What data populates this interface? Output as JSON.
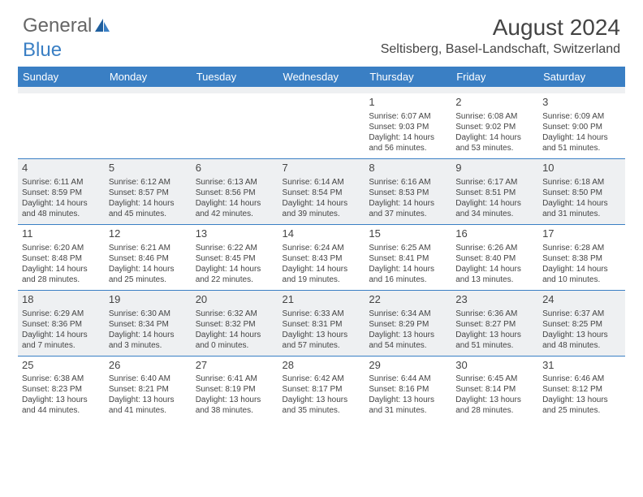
{
  "logo": {
    "text1": "General",
    "text2": "Blue"
  },
  "title": "August 2024",
  "location": "Seltisberg, Basel-Landschaft, Switzerland",
  "colors": {
    "header_bg": "#3a7fc4",
    "header_text": "#ffffff",
    "shaded_row": "#eef0f2",
    "divider": "#3a7fc4",
    "text": "#444444",
    "background": "#ffffff"
  },
  "day_headers": [
    "Sunday",
    "Monday",
    "Tuesday",
    "Wednesday",
    "Thursday",
    "Friday",
    "Saturday"
  ],
  "weeks": [
    {
      "shaded": false,
      "cells": [
        null,
        null,
        null,
        null,
        {
          "n": "1",
          "sr": "6:07 AM",
          "ss": "9:03 PM",
          "dl": "14 hours and 56 minutes."
        },
        {
          "n": "2",
          "sr": "6:08 AM",
          "ss": "9:02 PM",
          "dl": "14 hours and 53 minutes."
        },
        {
          "n": "3",
          "sr": "6:09 AM",
          "ss": "9:00 PM",
          "dl": "14 hours and 51 minutes."
        }
      ]
    },
    {
      "shaded": true,
      "cells": [
        {
          "n": "4",
          "sr": "6:11 AM",
          "ss": "8:59 PM",
          "dl": "14 hours and 48 minutes."
        },
        {
          "n": "5",
          "sr": "6:12 AM",
          "ss": "8:57 PM",
          "dl": "14 hours and 45 minutes."
        },
        {
          "n": "6",
          "sr": "6:13 AM",
          "ss": "8:56 PM",
          "dl": "14 hours and 42 minutes."
        },
        {
          "n": "7",
          "sr": "6:14 AM",
          "ss": "8:54 PM",
          "dl": "14 hours and 39 minutes."
        },
        {
          "n": "8",
          "sr": "6:16 AM",
          "ss": "8:53 PM",
          "dl": "14 hours and 37 minutes."
        },
        {
          "n": "9",
          "sr": "6:17 AM",
          "ss": "8:51 PM",
          "dl": "14 hours and 34 minutes."
        },
        {
          "n": "10",
          "sr": "6:18 AM",
          "ss": "8:50 PM",
          "dl": "14 hours and 31 minutes."
        }
      ]
    },
    {
      "shaded": false,
      "cells": [
        {
          "n": "11",
          "sr": "6:20 AM",
          "ss": "8:48 PM",
          "dl": "14 hours and 28 minutes."
        },
        {
          "n": "12",
          "sr": "6:21 AM",
          "ss": "8:46 PM",
          "dl": "14 hours and 25 minutes."
        },
        {
          "n": "13",
          "sr": "6:22 AM",
          "ss": "8:45 PM",
          "dl": "14 hours and 22 minutes."
        },
        {
          "n": "14",
          "sr": "6:24 AM",
          "ss": "8:43 PM",
          "dl": "14 hours and 19 minutes."
        },
        {
          "n": "15",
          "sr": "6:25 AM",
          "ss": "8:41 PM",
          "dl": "14 hours and 16 minutes."
        },
        {
          "n": "16",
          "sr": "6:26 AM",
          "ss": "8:40 PM",
          "dl": "14 hours and 13 minutes."
        },
        {
          "n": "17",
          "sr": "6:28 AM",
          "ss": "8:38 PM",
          "dl": "14 hours and 10 minutes."
        }
      ]
    },
    {
      "shaded": true,
      "cells": [
        {
          "n": "18",
          "sr": "6:29 AM",
          "ss": "8:36 PM",
          "dl": "14 hours and 7 minutes."
        },
        {
          "n": "19",
          "sr": "6:30 AM",
          "ss": "8:34 PM",
          "dl": "14 hours and 3 minutes."
        },
        {
          "n": "20",
          "sr": "6:32 AM",
          "ss": "8:32 PM",
          "dl": "14 hours and 0 minutes."
        },
        {
          "n": "21",
          "sr": "6:33 AM",
          "ss": "8:31 PM",
          "dl": "13 hours and 57 minutes."
        },
        {
          "n": "22",
          "sr": "6:34 AM",
          "ss": "8:29 PM",
          "dl": "13 hours and 54 minutes."
        },
        {
          "n": "23",
          "sr": "6:36 AM",
          "ss": "8:27 PM",
          "dl": "13 hours and 51 minutes."
        },
        {
          "n": "24",
          "sr": "6:37 AM",
          "ss": "8:25 PM",
          "dl": "13 hours and 48 minutes."
        }
      ]
    },
    {
      "shaded": false,
      "cells": [
        {
          "n": "25",
          "sr": "6:38 AM",
          "ss": "8:23 PM",
          "dl": "13 hours and 44 minutes."
        },
        {
          "n": "26",
          "sr": "6:40 AM",
          "ss": "8:21 PM",
          "dl": "13 hours and 41 minutes."
        },
        {
          "n": "27",
          "sr": "6:41 AM",
          "ss": "8:19 PM",
          "dl": "13 hours and 38 minutes."
        },
        {
          "n": "28",
          "sr": "6:42 AM",
          "ss": "8:17 PM",
          "dl": "13 hours and 35 minutes."
        },
        {
          "n": "29",
          "sr": "6:44 AM",
          "ss": "8:16 PM",
          "dl": "13 hours and 31 minutes."
        },
        {
          "n": "30",
          "sr": "6:45 AM",
          "ss": "8:14 PM",
          "dl": "13 hours and 28 minutes."
        },
        {
          "n": "31",
          "sr": "6:46 AM",
          "ss": "8:12 PM",
          "dl": "13 hours and 25 minutes."
        }
      ]
    }
  ],
  "labels": {
    "sunrise": "Sunrise:",
    "sunset": "Sunset:",
    "daylight": "Daylight:"
  }
}
